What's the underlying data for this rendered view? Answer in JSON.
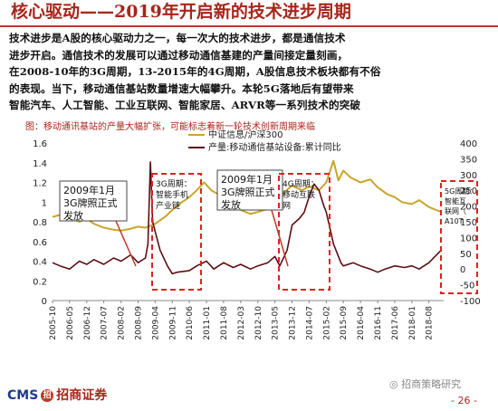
{
  "title": "核心驱动——2019年开启新的技术进步周期",
  "paragraph_lines": [
    "技术进步是A股的核心驱动力之一，每一次大的技术进步，都是通信技术",
    "进步开启。通信技术的发展可以通过移动通信基建的产量间接定量刻画，",
    "在2008-10年的3G周期，13-2015年的4G周期，A股信息技术板块都有不俗",
    "的表现。当下，移动通信基站数量增速大幅攀升。本轮5G落地后有望带来",
    "智能汽车、人工智能、工业互联网、智能家居、ARVR等一系列技术的突破"
  ],
  "figure_caption": "图：移动通讯基站的产量大幅扩张，可能标志着新一轮技术创新周期来临",
  "footer": {
    "logo_en": "CMS",
    "logo_badge": "招",
    "logo_cn": "招商证券",
    "watermark": "招商策略研究",
    "page": "- 26 -"
  },
  "colors": {
    "title": "#a6261b",
    "gold": "#c8a52a",
    "darkred": "#5a0f14",
    "box": "#e02020"
  },
  "chart_data": {
    "type": "line",
    "x_tick_labels": [
      "2005-10",
      "2006-05",
      "2006-12",
      "2007-07",
      "2008-02",
      "2008-09",
      "2009-04",
      "2009-11",
      "2010-06",
      "2011-01",
      "2011-08",
      "2012-03",
      "2012-10",
      "2013-05",
      "2013-12",
      "2014-07",
      "2015-02",
      "2015-09",
      "2016-04",
      "2016-11",
      "2017-06",
      "2018-01",
      "2018-08"
    ],
    "left_axis": {
      "range": [
        0,
        1.6
      ],
      "ticks": [
        "0",
        "0.2",
        "0.4",
        "0.6",
        "0.8",
        "1",
        "1.2",
        "1.4",
        "1.6"
      ]
    },
    "right_axis": {
      "range": [
        -100,
        400
      ],
      "ticks": [
        "-100",
        "-50",
        "0",
        "50",
        "100",
        "150",
        "200",
        "250",
        "300",
        "350",
        "400"
      ]
    },
    "series": [
      {
        "name": "中证信息/沪深300",
        "axis": "left",
        "color": "#c8a52a",
        "points": [
          [
            "2005-10",
            0.85
          ],
          [
            "2006-01",
            0.87
          ],
          [
            "2006-05",
            0.84
          ],
          [
            "2006-09",
            0.8
          ],
          [
            "2006-12",
            0.83
          ],
          [
            "2007-03",
            0.78
          ],
          [
            "2007-07",
            0.74
          ],
          [
            "2007-11",
            0.72
          ],
          [
            "2008-02",
            0.71
          ],
          [
            "2008-06",
            0.73
          ],
          [
            "2008-09",
            0.75
          ],
          [
            "2008-12",
            0.74
          ],
          [
            "2009-04",
            0.78
          ],
          [
            "2009-08",
            0.85
          ],
          [
            "2009-11",
            0.92
          ],
          [
            "2010-03",
            1.0
          ],
          [
            "2010-06",
            1.05
          ],
          [
            "2010-09",
            1.12
          ],
          [
            "2010-12",
            1.2
          ],
          [
            "2011-03",
            1.12
          ],
          [
            "2011-08",
            1.05
          ],
          [
            "2011-12",
            0.98
          ],
          [
            "2012-03",
            0.92
          ],
          [
            "2012-07",
            0.88
          ],
          [
            "2012-10",
            0.9
          ],
          [
            "2013-02",
            0.93
          ],
          [
            "2013-05",
            1.0
          ],
          [
            "2013-08",
            1.08
          ],
          [
            "2013-12",
            1.17
          ],
          [
            "2014-04",
            1.12
          ],
          [
            "2014-07",
            1.16
          ],
          [
            "2014-11",
            1.12
          ],
          [
            "2015-02",
            1.2
          ],
          [
            "2015-05",
            1.42
          ],
          [
            "2015-07",
            1.22
          ],
          [
            "2015-09",
            1.32
          ],
          [
            "2015-12",
            1.25
          ],
          [
            "2016-04",
            1.2
          ],
          [
            "2016-08",
            1.23
          ],
          [
            "2016-11",
            1.15
          ],
          [
            "2017-03",
            1.08
          ],
          [
            "2017-06",
            1.05
          ],
          [
            "2017-09",
            1.0
          ],
          [
            "2018-01",
            0.98
          ],
          [
            "2018-04",
            1.02
          ],
          [
            "2018-08",
            0.95
          ],
          [
            "2018-11",
            0.92
          ],
          [
            "2019-01",
            0.9
          ]
        ]
      },
      {
        "name": "产量:移动通信基站设备:累计同比",
        "axis": "right",
        "color": "#5a0f14",
        "points": [
          [
            "2005-10",
            20
          ],
          [
            "2006-01",
            10
          ],
          [
            "2006-05",
            0
          ],
          [
            "2006-09",
            25
          ],
          [
            "2006-12",
            15
          ],
          [
            "2007-03",
            30
          ],
          [
            "2007-07",
            15
          ],
          [
            "2007-11",
            35
          ],
          [
            "2008-02",
            25
          ],
          [
            "2008-06",
            45
          ],
          [
            "2008-09",
            20
          ],
          [
            "2008-12",
            35
          ],
          [
            "2009-01",
            80
          ],
          [
            "2009-02",
            340
          ],
          [
            "2009-03",
            150
          ],
          [
            "2009-04",
            120
          ],
          [
            "2009-06",
            60
          ],
          [
            "2009-09",
            10
          ],
          [
            "2009-11",
            -15
          ],
          [
            "2010-01",
            -10
          ],
          [
            "2010-06",
            -5
          ],
          [
            "2010-09",
            10
          ],
          [
            "2011-01",
            25
          ],
          [
            "2011-04",
            0
          ],
          [
            "2011-08",
            20
          ],
          [
            "2011-12",
            5
          ],
          [
            "2012-03",
            15
          ],
          [
            "2012-07",
            0
          ],
          [
            "2012-10",
            10
          ],
          [
            "2013-02",
            20
          ],
          [
            "2013-05",
            40
          ],
          [
            "2013-07",
            10
          ],
          [
            "2013-10",
            60
          ],
          [
            "2013-12",
            140
          ],
          [
            "2014-03",
            160
          ],
          [
            "2014-05",
            180
          ],
          [
            "2014-07",
            230
          ],
          [
            "2014-09",
            270
          ],
          [
            "2014-11",
            250
          ],
          [
            "2015-01",
            200
          ],
          [
            "2015-02",
            180
          ],
          [
            "2015-05",
            80
          ],
          [
            "2015-08",
            20
          ],
          [
            "2015-09",
            10
          ],
          [
            "2016-01",
            20
          ],
          [
            "2016-04",
            10
          ],
          [
            "2016-08",
            0
          ],
          [
            "2016-11",
            -10
          ],
          [
            "2017-02",
            0
          ],
          [
            "2017-06",
            10
          ],
          [
            "2017-10",
            5
          ],
          [
            "2018-01",
            10
          ],
          [
            "2018-04",
            0
          ],
          [
            "2018-08",
            20
          ],
          [
            "2019-01",
            60
          ]
        ]
      }
    ],
    "annotations": [
      {
        "text_lines": [
          "2009年1月",
          "3G牌照正式",
          "发放"
        ],
        "style": "box"
      },
      {
        "text_lines": [
          "3G周期：",
          "智能手机",
          "产业链"
        ],
        "style": "dashed-box"
      },
      {
        "text_lines": [
          "2009年1月",
          "3G牌照正式",
          "发放"
        ],
        "style": "box"
      },
      {
        "text_lines": [
          "4G周期：",
          "移动互联",
          "网"
        ],
        "style": "dashed-box"
      },
      {
        "text_lines": [
          "5G周期：",
          "智能互",
          "联网（",
          "A10T"
        ],
        "style": "dashed-box"
      }
    ],
    "legend_position": "top"
  }
}
